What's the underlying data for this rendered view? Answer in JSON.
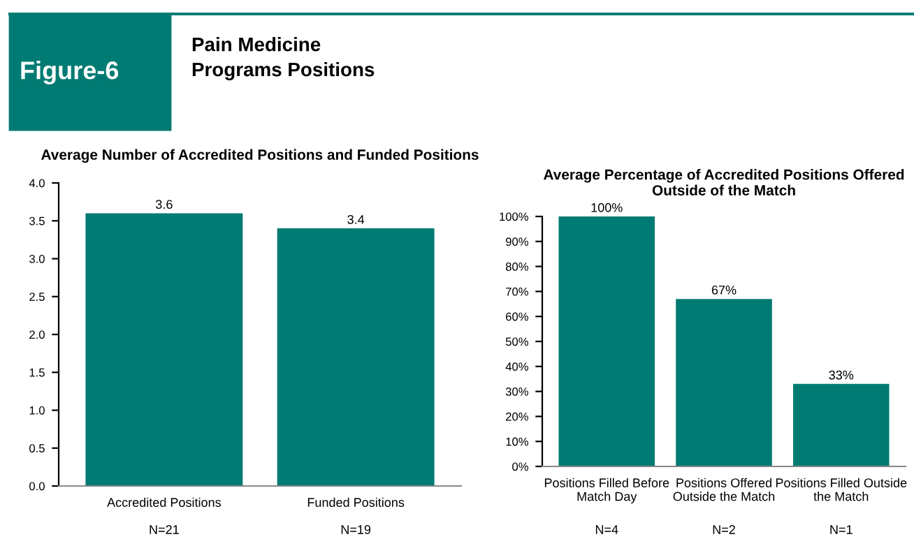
{
  "chart_data": [
    {
      "type": "bar",
      "title": "Average Number of Accredited Positions and Funded Positions",
      "categories": [
        "Accredited Positions",
        "Funded Positions"
      ],
      "values": [
        3.6,
        3.4
      ],
      "color": "#007b73",
      "data_labels": true,
      "ylim": [
        0,
        4
      ],
      "yticks": [
        {
          "value": 0,
          "label": "0.0"
        },
        {
          "value": 0.5,
          "label": "0.5"
        },
        {
          "value": 1,
          "label": "1.0"
        },
        {
          "value": 1.5,
          "label": "1.5"
        },
        {
          "value": 2,
          "label": "2.0"
        },
        {
          "value": 2.5,
          "label": "2.5"
        },
        {
          "value": 3,
          "label": "3.0"
        },
        {
          "value": 3.5,
          "label": "3.5"
        },
        {
          "value": 4,
          "label": "4.0"
        }
      ],
      "grid": false,
      "annotations": [
        "Figure-6",
        "Pain Medicine\nPrograms Positions",
        "N=21",
        "N=19"
      ]
    },
    {
      "type": "bar",
      "title": "Average Percentage of Accredited Positions Offered Outside of the Match",
      "categories": [
        "Positions Filled Before Match Day",
        "Positions Offered Outside the Match",
        "Positions Filled Outside the Match"
      ],
      "values": [
        100,
        67,
        33
      ],
      "value_labels": [
        "100%",
        "67%",
        "33%"
      ],
      "color": "#007b73",
      "ylim": [
        0,
        100
      ],
      "yticks": [
        {
          "value": 0,
          "label": "0%"
        },
        {
          "value": 10,
          "label": "10%"
        },
        {
          "value": 20,
          "label": "20%"
        },
        {
          "value": 30,
          "label": "30%"
        },
        {
          "value": 40,
          "label": "40%"
        },
        {
          "value": 50,
          "label": "50%"
        },
        {
          "value": 60,
          "label": "60%"
        },
        {
          "value": 70,
          "label": "70%"
        },
        {
          "value": 80,
          "label": "80%"
        },
        {
          "value": 90,
          "label": "90%"
        },
        {
          "value": 100,
          "label": "100%"
        }
      ],
      "grid": false,
      "annotations": [
        "N=4",
        "N=2",
        "N=1"
      ]
    }
  ]
}
